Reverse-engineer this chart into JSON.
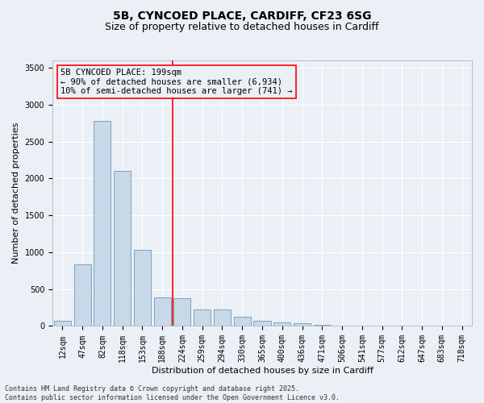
{
  "title_line1": "5B, CYNCOED PLACE, CARDIFF, CF23 6SG",
  "title_line2": "Size of property relative to detached houses in Cardiff",
  "xlabel": "Distribution of detached houses by size in Cardiff",
  "ylabel": "Number of detached properties",
  "bins": [
    "12sqm",
    "47sqm",
    "82sqm",
    "118sqm",
    "153sqm",
    "188sqm",
    "224sqm",
    "259sqm",
    "294sqm",
    "330sqm",
    "365sqm",
    "400sqm",
    "436sqm",
    "471sqm",
    "506sqm",
    "541sqm",
    "577sqm",
    "612sqm",
    "647sqm",
    "683sqm",
    "718sqm"
  ],
  "values": [
    75,
    840,
    2780,
    2100,
    1030,
    390,
    380,
    220,
    220,
    120,
    75,
    50,
    40,
    20,
    10,
    5,
    3,
    2,
    1,
    1,
    0
  ],
  "bar_color": "#c8d8e8",
  "bar_edge_color": "#6a9ab8",
  "vline_x": 5.5,
  "vline_color": "red",
  "annotation_title": "5B CYNCOED PLACE: 199sqm",
  "annotation_line1": "← 90% of detached houses are smaller (6,934)",
  "annotation_line2": "10% of semi-detached houses are larger (741) →",
  "annotation_box_color": "red",
  "ylim": [
    0,
    3600
  ],
  "yticks": [
    0,
    500,
    1000,
    1500,
    2000,
    2500,
    3000,
    3500
  ],
  "footer_line1": "Contains HM Land Registry data © Crown copyright and database right 2025.",
  "footer_line2": "Contains public sector information licensed under the Open Government Licence v3.0.",
  "bg_color": "#eaf0f6",
  "grid_color": "white",
  "title_fontsize": 10,
  "subtitle_fontsize": 9,
  "annotation_fontsize": 7.5,
  "axis_label_fontsize": 8,
  "tick_fontsize": 7,
  "footer_fontsize": 6
}
